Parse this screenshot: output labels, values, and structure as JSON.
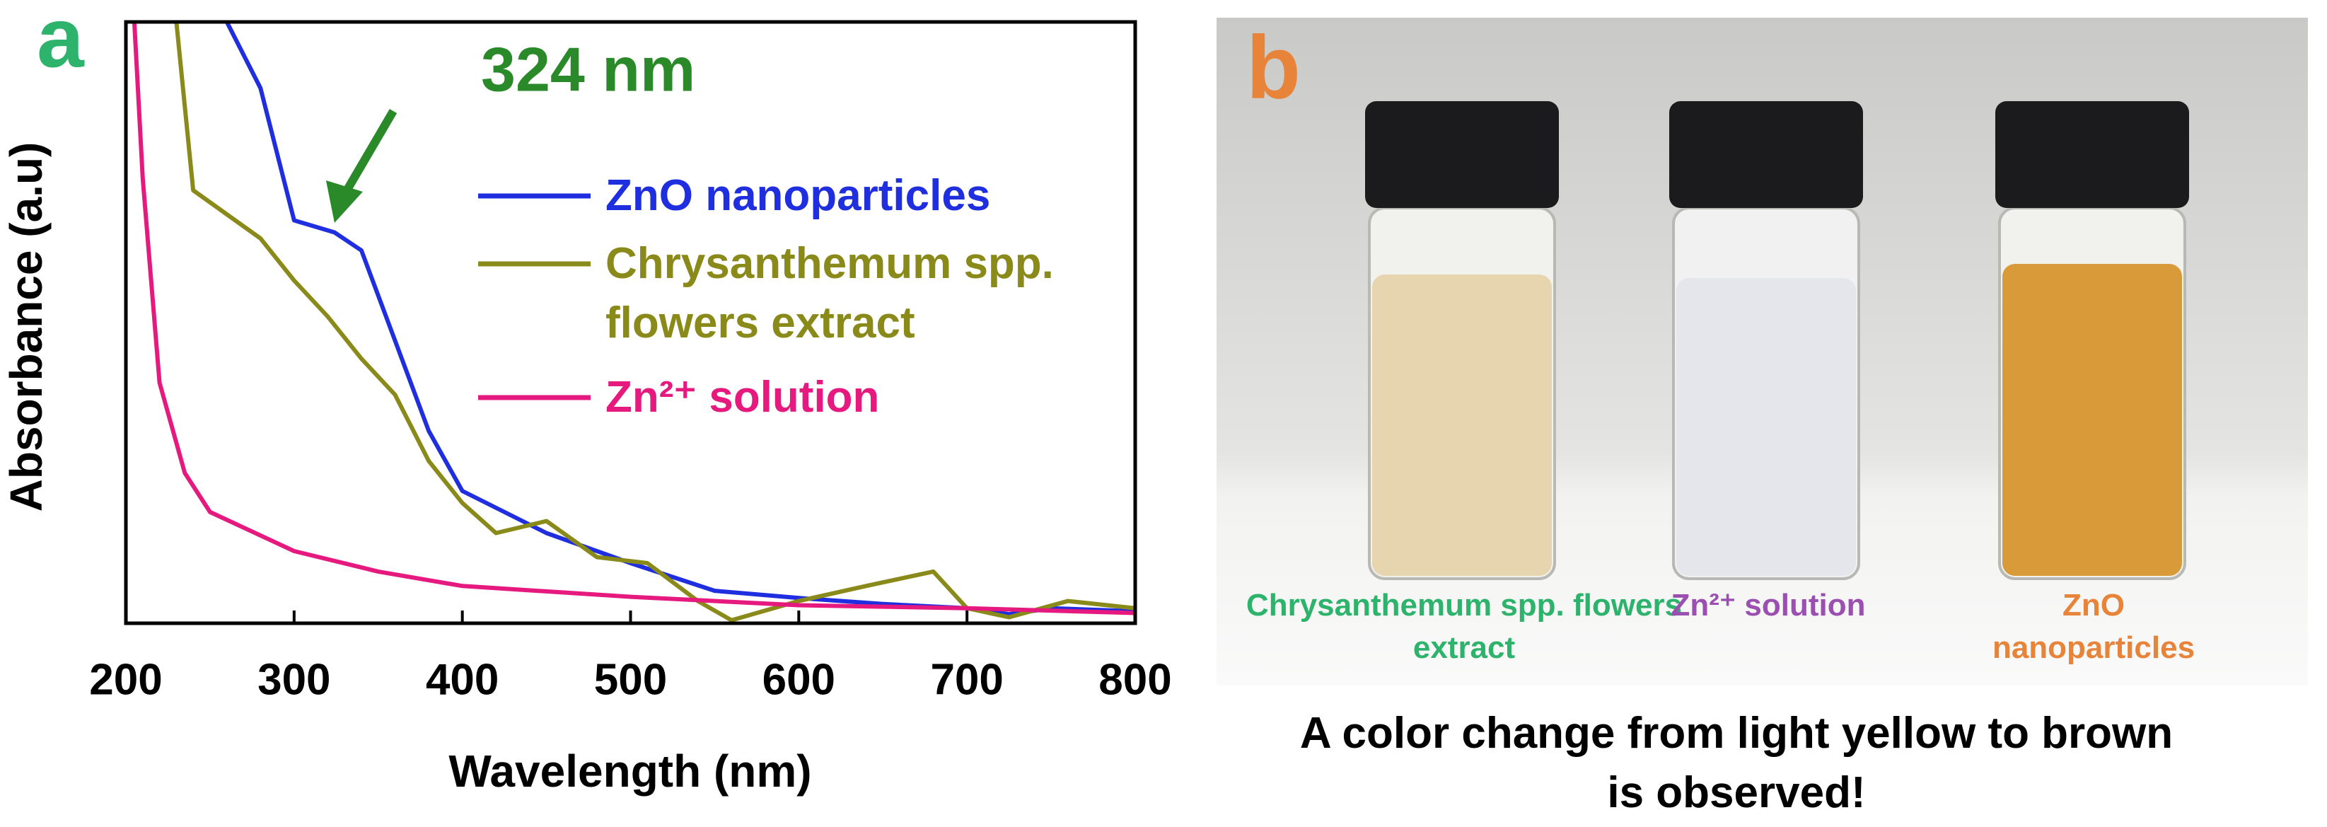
{
  "chart_data": {
    "type": "line",
    "panel_label": "a",
    "xlabel": "Wavelength (nm)",
    "ylabel": "Absorbance (a.u)",
    "annotation": "324 nm",
    "annotation_x": 324,
    "xlim": [
      200,
      800
    ],
    "xticks": [
      200,
      300,
      400,
      500,
      600,
      700,
      800
    ],
    "ylim": [
      0,
      1
    ],
    "series": [
      {
        "name": "ZnO nanoparticles",
        "color": "#1f2fe0",
        "x": [
          260,
          280,
          300,
          324,
          340,
          360,
          380,
          400,
          450,
          500,
          550,
          600,
          650,
          700,
          725,
          750,
          800
        ],
        "values": [
          1.0,
          0.89,
          0.67,
          0.65,
          0.62,
          0.47,
          0.32,
          0.22,
          0.15,
          0.1,
          0.054,
          0.042,
          0.032,
          0.025,
          0.015,
          0.025,
          0.02
        ]
      },
      {
        "name": "Chrysanthemum spp. flowers extract",
        "color": "#8a8a1a",
        "x": [
          230,
          240,
          260,
          280,
          300,
          320,
          340,
          360,
          380,
          400,
          420,
          450,
          480,
          510,
          540,
          560,
          600,
          640,
          680,
          700,
          725,
          760,
          800
        ],
        "values": [
          1.0,
          0.72,
          0.68,
          0.64,
          0.57,
          0.51,
          0.44,
          0.38,
          0.27,
          0.2,
          0.15,
          0.17,
          0.11,
          0.1,
          0.037,
          0.005,
          0.037,
          0.062,
          0.086,
          0.025,
          0.01,
          0.037,
          0.025
        ]
      },
      {
        "name": "Zn²⁺ solution",
        "color": "#e6197f",
        "x": [
          205,
          210,
          220,
          235,
          250,
          300,
          350,
          400,
          500,
          600,
          700,
          800
        ],
        "values": [
          1.0,
          0.74,
          0.4,
          0.25,
          0.185,
          0.12,
          0.086,
          0.062,
          0.044,
          0.03,
          0.025,
          0.017
        ]
      }
    ]
  },
  "panel_b": {
    "label": "b",
    "vial_labels": [
      "Chrysanthemum spp. flowers extract",
      "Zn²⁺ solution",
      "ZnO nanoparticles"
    ],
    "caption": "A color change from light yellow to brown is observed!"
  }
}
